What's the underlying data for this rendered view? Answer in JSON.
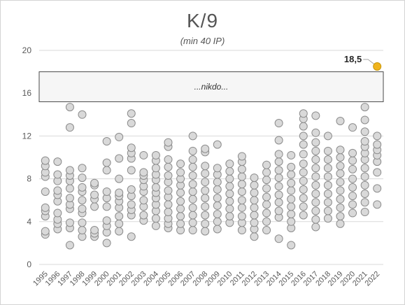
{
  "chart_data": {
    "type": "scatter",
    "title": "K/9",
    "subtitle": "(min 40 IP)",
    "xlabel": "",
    "ylabel": "",
    "ylim": [
      0,
      20
    ],
    "y_ticks": [
      "0",
      "4",
      "8",
      "12",
      "16",
      "20"
    ],
    "grid": true,
    "categories": [
      "1995",
      "1996",
      "1997",
      "1998",
      "1999",
      "2000",
      "2001",
      "2002",
      "2003",
      "2004",
      "2005",
      "2006",
      "2007",
      "2008",
      "2009",
      "2010",
      "2011",
      "2012",
      "2013",
      "2014",
      "2015",
      "2016",
      "2017",
      "2018",
      "2019",
      "2020",
      "2021",
      "2022"
    ],
    "band": {
      "y_from": 15.2,
      "y_to": 18.0,
      "label": "...nikdo..."
    },
    "highlight": {
      "year": "2022",
      "value": 18.5,
      "label": "18,5",
      "color": "#f0b41e"
    },
    "series": [
      {
        "values": [
          [
            2.8,
            3.1,
            4.5,
            5.0,
            5.3,
            6.8,
            8.2,
            8.6,
            9.2,
            9.7
          ],
          [
            3.3,
            3.8,
            4.2,
            4.8,
            5.9,
            6.5,
            6.9,
            7.8,
            8.4,
            9.6
          ],
          [
            1.8,
            3.4,
            3.9,
            5.2,
            5.6,
            6.2,
            7.1,
            7.8,
            8.3,
            8.8,
            12.8,
            14.7
          ],
          [
            2.6,
            3.2,
            3.9,
            4.8,
            5.2,
            6.0,
            6.8,
            7.2,
            8.1,
            9.0,
            14.0
          ],
          [
            2.6,
            2.9,
            3.2,
            5.4,
            6.1,
            6.5,
            7.4,
            7.6
          ],
          [
            2.0,
            3.0,
            3.6,
            4.1,
            5.4,
            6.2,
            6.8,
            8.8,
            9.5,
            11.5
          ],
          [
            3.1,
            3.8,
            4.5,
            5.3,
            5.9,
            6.4,
            6.7,
            8.0,
            9.9,
            11.9
          ],
          [
            2.6,
            4.6,
            5.1,
            5.6,
            6.4,
            7.0,
            8.8,
            9.9,
            10.4,
            10.9,
            13.2,
            14.1
          ],
          [
            4.1,
            4.6,
            5.4,
            6.0,
            6.8,
            7.3,
            7.9,
            8.3,
            8.6,
            10.2
          ],
          [
            3.6,
            4.3,
            5.0,
            5.6,
            6.2,
            6.7,
            7.2,
            7.9,
            8.4,
            9.0,
            9.7,
            10.2
          ],
          [
            3.4,
            3.8,
            4.3,
            4.9,
            5.6,
            6.3,
            6.9,
            7.7,
            8.3,
            9.1,
            9.8,
            11.0,
            11.4
          ],
          [
            3.2,
            3.8,
            4.5,
            5.2,
            5.9,
            6.7,
            7.4,
            8.0,
            8.6,
            9.4
          ],
          [
            3.2,
            3.9,
            4.6,
            5.3,
            6.1,
            6.8,
            7.5,
            8.3,
            9.1,
            9.8,
            10.6,
            12.0
          ],
          [
            3.1,
            3.8,
            4.6,
            5.4,
            6.2,
            6.9,
            7.7,
            8.5,
            9.2,
            10.5,
            10.8
          ],
          [
            3.3,
            4.0,
            4.7,
            5.5,
            6.2,
            7.0,
            7.7,
            8.4,
            9.0,
            11.2
          ],
          [
            3.9,
            4.5,
            5.2,
            5.9,
            6.6,
            7.3,
            8.0,
            8.7,
            9.4
          ],
          [
            3.2,
            3.9,
            4.5,
            5.3,
            6.0,
            6.8,
            7.5,
            8.2,
            8.9,
            9.6,
            10.1
          ],
          [
            2.6,
            3.3,
            3.9,
            4.6,
            5.3,
            6.0,
            6.7,
            7.4,
            8.1
          ],
          [
            3.2,
            4.0,
            4.8,
            5.6,
            6.3,
            7.1,
            7.9,
            8.6,
            9.3
          ],
          [
            2.4,
            4.4,
            5.0,
            5.8,
            6.5,
            7.3,
            8.1,
            8.8,
            9.6,
            10.3,
            11.6,
            13.2
          ],
          [
            1.8,
            3.4,
            4.0,
            4.7,
            5.4,
            6.1,
            6.9,
            7.6,
            8.4,
            9.1,
            10.2
          ],
          [
            4.6,
            5.4,
            6.2,
            7.0,
            7.8,
            8.6,
            9.4,
            10.3,
            11.2,
            12.0,
            12.9,
            13.6,
            14.1
          ],
          [
            3.5,
            4.2,
            5.0,
            5.8,
            6.6,
            7.4,
            8.2,
            9.0,
            9.8,
            10.6,
            11.4,
            12.3,
            13.9
          ],
          [
            4.3,
            5.0,
            5.8,
            6.6,
            7.4,
            8.2,
            9.0,
            9.8,
            10.6,
            12.0
          ],
          [
            3.8,
            4.5,
            5.3,
            6.1,
            6.9,
            7.7,
            8.5,
            9.2,
            10.0,
            10.7,
            13.4
          ],
          [
            4.8,
            5.6,
            6.4,
            7.2,
            8.0,
            8.9,
            9.7,
            10.4,
            12.8
          ],
          [
            4.9,
            5.8,
            6.6,
            7.4,
            8.2,
            9.0,
            9.8,
            10.4,
            11.0,
            11.5,
            12.4,
            13.5,
            14.7
          ],
          [
            5.6,
            7.1,
            8.6,
            9.6,
            10.2,
            10.7,
            11.2,
            12.0
          ]
        ]
      }
    ]
  }
}
